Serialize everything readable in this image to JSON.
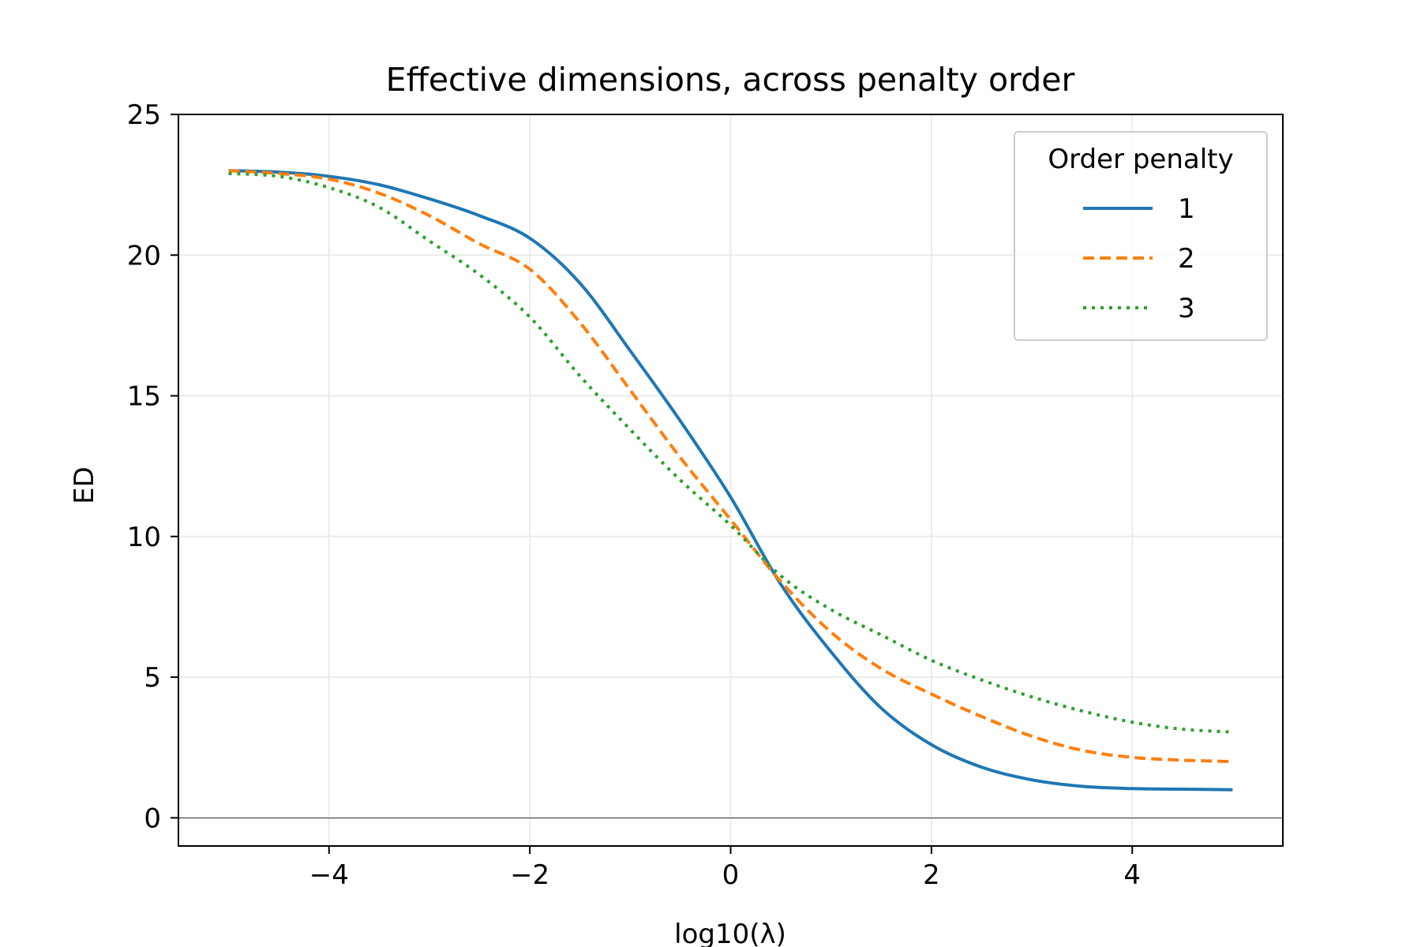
{
  "chart_data": {
    "type": "line",
    "title": "Effective dimensions, across penalty order",
    "xlabel": "log10(λ)",
    "ylabel": "ED",
    "xlim": [
      -5.5,
      5.5
    ],
    "ylim": [
      -1,
      25
    ],
    "xticks": [
      -4,
      -2,
      0,
      2,
      4
    ],
    "xtick_labels": [
      "−4",
      "−2",
      "0",
      "2",
      "4"
    ],
    "yticks": [
      0,
      5,
      10,
      15,
      20,
      25
    ],
    "ytick_labels": [
      "0",
      "5",
      "10",
      "15",
      "20",
      "25"
    ],
    "grid": true,
    "zero_line": true,
    "legend": {
      "title": "Order penalty",
      "placement": "top-right"
    },
    "x": [
      -5,
      -4.5,
      -4,
      -3.5,
      -3,
      -2.5,
      -2,
      -1.5,
      -1,
      -0.5,
      0,
      0.5,
      1,
      1.5,
      2,
      2.5,
      3,
      3.5,
      4,
      4.5,
      5
    ],
    "series": [
      {
        "name": "1",
        "color": "#1f77b4",
        "dash": "solid",
        "values": [
          23.0,
          22.95,
          22.8,
          22.5,
          22.0,
          21.4,
          20.6,
          19.0,
          16.6,
          14.1,
          11.4,
          8.3,
          5.9,
          3.9,
          2.6,
          1.8,
          1.35,
          1.12,
          1.04,
          1.02,
          1.0
        ]
      },
      {
        "name": "2",
        "color": "#ff7f0e",
        "dash": "dashed",
        "values": [
          23.0,
          22.9,
          22.7,
          22.2,
          21.4,
          20.4,
          19.5,
          17.6,
          15.2,
          12.8,
          10.6,
          8.4,
          6.6,
          5.3,
          4.4,
          3.6,
          2.9,
          2.4,
          2.15,
          2.05,
          2.0
        ]
      },
      {
        "name": "3",
        "color": "#2ca02c",
        "dash": "dotted",
        "values": [
          22.9,
          22.8,
          22.4,
          21.7,
          20.5,
          19.3,
          17.8,
          15.7,
          13.8,
          12.0,
          10.4,
          8.6,
          7.4,
          6.5,
          5.6,
          4.9,
          4.3,
          3.8,
          3.4,
          3.15,
          3.05
        ]
      }
    ]
  }
}
